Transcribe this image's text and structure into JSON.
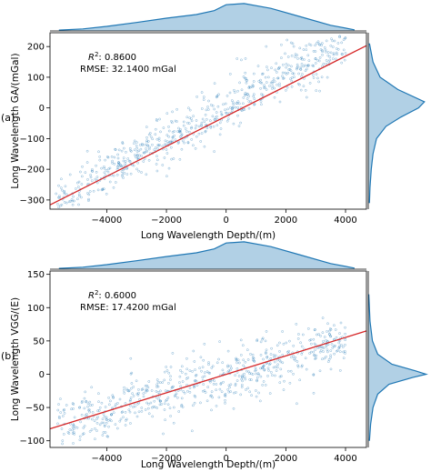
{
  "chart_data": [
    {
      "type": "scatter",
      "panel_label": "(a)",
      "xlabel": "Long Wavelength Depth/(m)",
      "ylabel": "Long Wavelength GA/(mGal)",
      "xlim": [
        -5900,
        4700
      ],
      "ylim": [
        -330,
        245
      ],
      "xticks": [
        -4000,
        -2000,
        0,
        2000,
        4000
      ],
      "yticks": [
        -300,
        -200,
        -100,
        0,
        100,
        200
      ],
      "annotation_r2_label": "R",
      "annotation_r2_sup": "2",
      "annotation_r2_value": ": 0.8600",
      "annotation_rmse": "RMSE: 32.1400 mGal",
      "fit_line": {
        "x": [
          -5900,
          4700
        ],
        "y": [
          -316,
          203
        ]
      },
      "scatter_color": "#1f77b4",
      "fit_color": "#d62728",
      "scatter_trend": {
        "slope": 0.054,
        "intercept": 5,
        "spread": 38,
        "x_range": [
          -5700,
          4000
        ]
      },
      "top_marginal": {
        "x": [
          -5600,
          -4800,
          -4000,
          -3000,
          -2000,
          -1000,
          -400,
          0,
          600,
          1500,
          2500,
          3500,
          4300
        ],
        "density": [
          0.03,
          0.07,
          0.16,
          0.3,
          0.45,
          0.58,
          0.72,
          0.93,
          0.97,
          0.8,
          0.5,
          0.2,
          0.04
        ]
      },
      "right_marginal": {
        "y": [
          -310,
          -260,
          -200,
          -150,
          -100,
          -60,
          -30,
          0,
          20,
          60,
          100,
          150,
          210
        ],
        "density": [
          0.02,
          0.03,
          0.05,
          0.08,
          0.14,
          0.3,
          0.55,
          0.85,
          0.95,
          0.5,
          0.2,
          0.08,
          0.02
        ]
      }
    },
    {
      "type": "scatter",
      "panel_label": "(b)",
      "xlabel": "Long Wavelength Depth/(m)",
      "ylabel": "Long Wavelength VGG/(E)",
      "xlim": [
        -5900,
        4700
      ],
      "ylim": [
        -110,
        155
      ],
      "xticks": [
        -4000,
        -2000,
        0,
        2000,
        4000
      ],
      "yticks": [
        -100,
        -50,
        0,
        50,
        100,
        150
      ],
      "annotation_r2_label": "R",
      "annotation_r2_sup": "2",
      "annotation_r2_value": ": 0.6000",
      "annotation_rmse": "RMSE: 17.4200 mGal",
      "fit_line": {
        "x": [
          -5900,
          4700
        ],
        "y": [
          -82,
          65
        ]
      },
      "scatter_color": "#1f77b4",
      "fit_color": "#d62728",
      "scatter_trend": {
        "slope": 0.0135,
        "intercept": -2,
        "spread": 22,
        "x_range": [
          -5700,
          4000
        ]
      },
      "top_marginal": {
        "x": [
          -5600,
          -4800,
          -4000,
          -3000,
          -2000,
          -1000,
          -400,
          0,
          600,
          1500,
          2500,
          3500,
          4300
        ],
        "density": [
          0.03,
          0.07,
          0.16,
          0.3,
          0.45,
          0.58,
          0.72,
          0.93,
          0.97,
          0.8,
          0.5,
          0.2,
          0.04
        ]
      },
      "right_marginal": {
        "y": [
          -100,
          -75,
          -50,
          -30,
          -15,
          -5,
          0,
          5,
          15,
          30,
          50,
          80,
          120
        ],
        "density": [
          0.02,
          0.04,
          0.08,
          0.16,
          0.35,
          0.75,
          0.98,
          0.8,
          0.4,
          0.16,
          0.07,
          0.03,
          0.01
        ]
      }
    }
  ]
}
